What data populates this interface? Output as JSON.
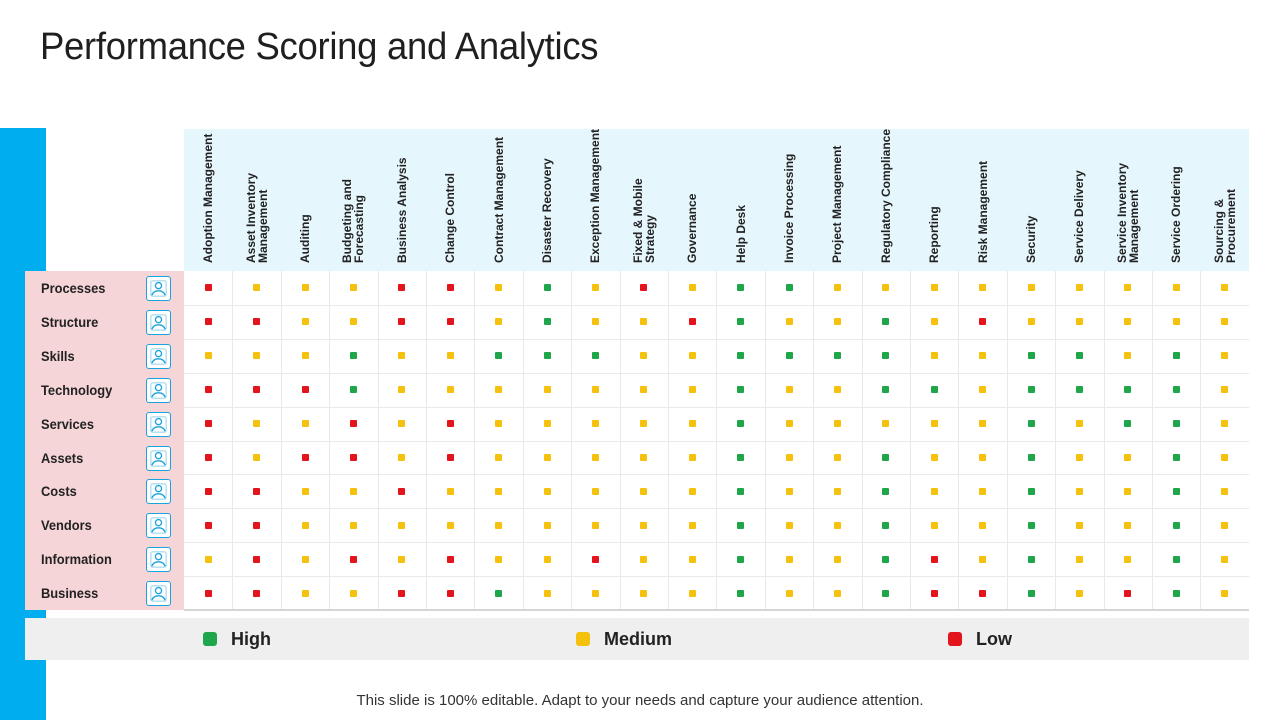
{
  "title": "Performance Scoring and Analytics",
  "footer": "This slide is 100% editable. Adapt to your needs and capture your audience attention.",
  "colors": {
    "H": "#1fa64a",
    "M": "#f4c20d",
    "L": "#e3141b",
    "accent": "#00adef"
  },
  "columns": [
    "Adoption Management",
    "Asset Inventory\nManagement",
    "Auditing",
    "Budgeting and\nForecasting",
    "Business Analysis",
    "Change Control",
    "Contract Management",
    "Disaster Recovery",
    "Exception Management",
    "Fixed & Mobile\nStrategy",
    "Governance",
    "Help Desk",
    "Invoice Processing",
    "Project Management",
    "Regulatory Compliance",
    "Reporting",
    "Risk Management",
    "Security",
    "Service Delivery",
    "Service Inventory\nManagement",
    "Service Ordering",
    "Sourcing &\nProcurement"
  ],
  "rows": [
    {
      "label": "Processes",
      "icon": "processes-icon",
      "ratings": [
        "L",
        "M",
        "M",
        "M",
        "L",
        "L",
        "M",
        "H",
        "M",
        "L",
        "M",
        "H",
        "H",
        "M",
        "M",
        "M",
        "M",
        "M",
        "M",
        "M",
        "M",
        "M"
      ]
    },
    {
      "label": "Structure",
      "icon": "structure-icon",
      "ratings": [
        "L",
        "L",
        "M",
        "M",
        "L",
        "L",
        "M",
        "H",
        "M",
        "M",
        "L",
        "H",
        "M",
        "M",
        "H",
        "M",
        "L",
        "M",
        "M",
        "M",
        "M",
        "M"
      ]
    },
    {
      "label": "Skills",
      "icon": "skills-icon",
      "ratings": [
        "M",
        "M",
        "M",
        "H",
        "M",
        "M",
        "H",
        "H",
        "H",
        "M",
        "M",
        "H",
        "H",
        "H",
        "H",
        "M",
        "M",
        "H",
        "H",
        "M",
        "H",
        "M"
      ]
    },
    {
      "label": "Technology",
      "icon": "technology-icon",
      "ratings": [
        "L",
        "L",
        "L",
        "H",
        "M",
        "M",
        "M",
        "M",
        "M",
        "M",
        "M",
        "H",
        "M",
        "M",
        "H",
        "H",
        "M",
        "H",
        "H",
        "H",
        "H",
        "M"
      ]
    },
    {
      "label": "Services",
      "icon": "services-icon",
      "ratings": [
        "L",
        "M",
        "M",
        "L",
        "M",
        "L",
        "M",
        "M",
        "M",
        "M",
        "M",
        "H",
        "M",
        "M",
        "M",
        "M",
        "M",
        "H",
        "M",
        "H",
        "H",
        "M"
      ]
    },
    {
      "label": "Assets",
      "icon": "assets-icon",
      "ratings": [
        "L",
        "M",
        "L",
        "L",
        "M",
        "L",
        "M",
        "M",
        "M",
        "M",
        "M",
        "H",
        "M",
        "M",
        "H",
        "M",
        "M",
        "H",
        "M",
        "M",
        "H",
        "M"
      ]
    },
    {
      "label": "Costs",
      "icon": "costs-icon",
      "ratings": [
        "L",
        "L",
        "M",
        "M",
        "L",
        "M",
        "M",
        "M",
        "M",
        "M",
        "M",
        "H",
        "M",
        "M",
        "H",
        "M",
        "M",
        "H",
        "M",
        "M",
        "H",
        "M"
      ]
    },
    {
      "label": "Vendors",
      "icon": "vendors-icon",
      "ratings": [
        "L",
        "L",
        "M",
        "M",
        "M",
        "M",
        "M",
        "M",
        "M",
        "M",
        "M",
        "H",
        "M",
        "M",
        "H",
        "M",
        "M",
        "H",
        "M",
        "M",
        "H",
        "M"
      ]
    },
    {
      "label": "Information",
      "icon": "information-icon",
      "ratings": [
        "M",
        "L",
        "M",
        "L",
        "M",
        "L",
        "M",
        "M",
        "L",
        "M",
        "M",
        "H",
        "M",
        "M",
        "H",
        "L",
        "M",
        "H",
        "M",
        "M",
        "H",
        "M"
      ]
    },
    {
      "label": "Business",
      "icon": "business-icon",
      "ratings": [
        "L",
        "L",
        "M",
        "M",
        "L",
        "L",
        "H",
        "M",
        "M",
        "M",
        "M",
        "H",
        "M",
        "M",
        "H",
        "L",
        "L",
        "H",
        "M",
        "L",
        "H",
        "M"
      ]
    }
  ],
  "legend": [
    {
      "key": "H",
      "label": "High"
    },
    {
      "key": "M",
      "label": "Medium"
    },
    {
      "key": "L",
      "label": "Low"
    }
  ]
}
